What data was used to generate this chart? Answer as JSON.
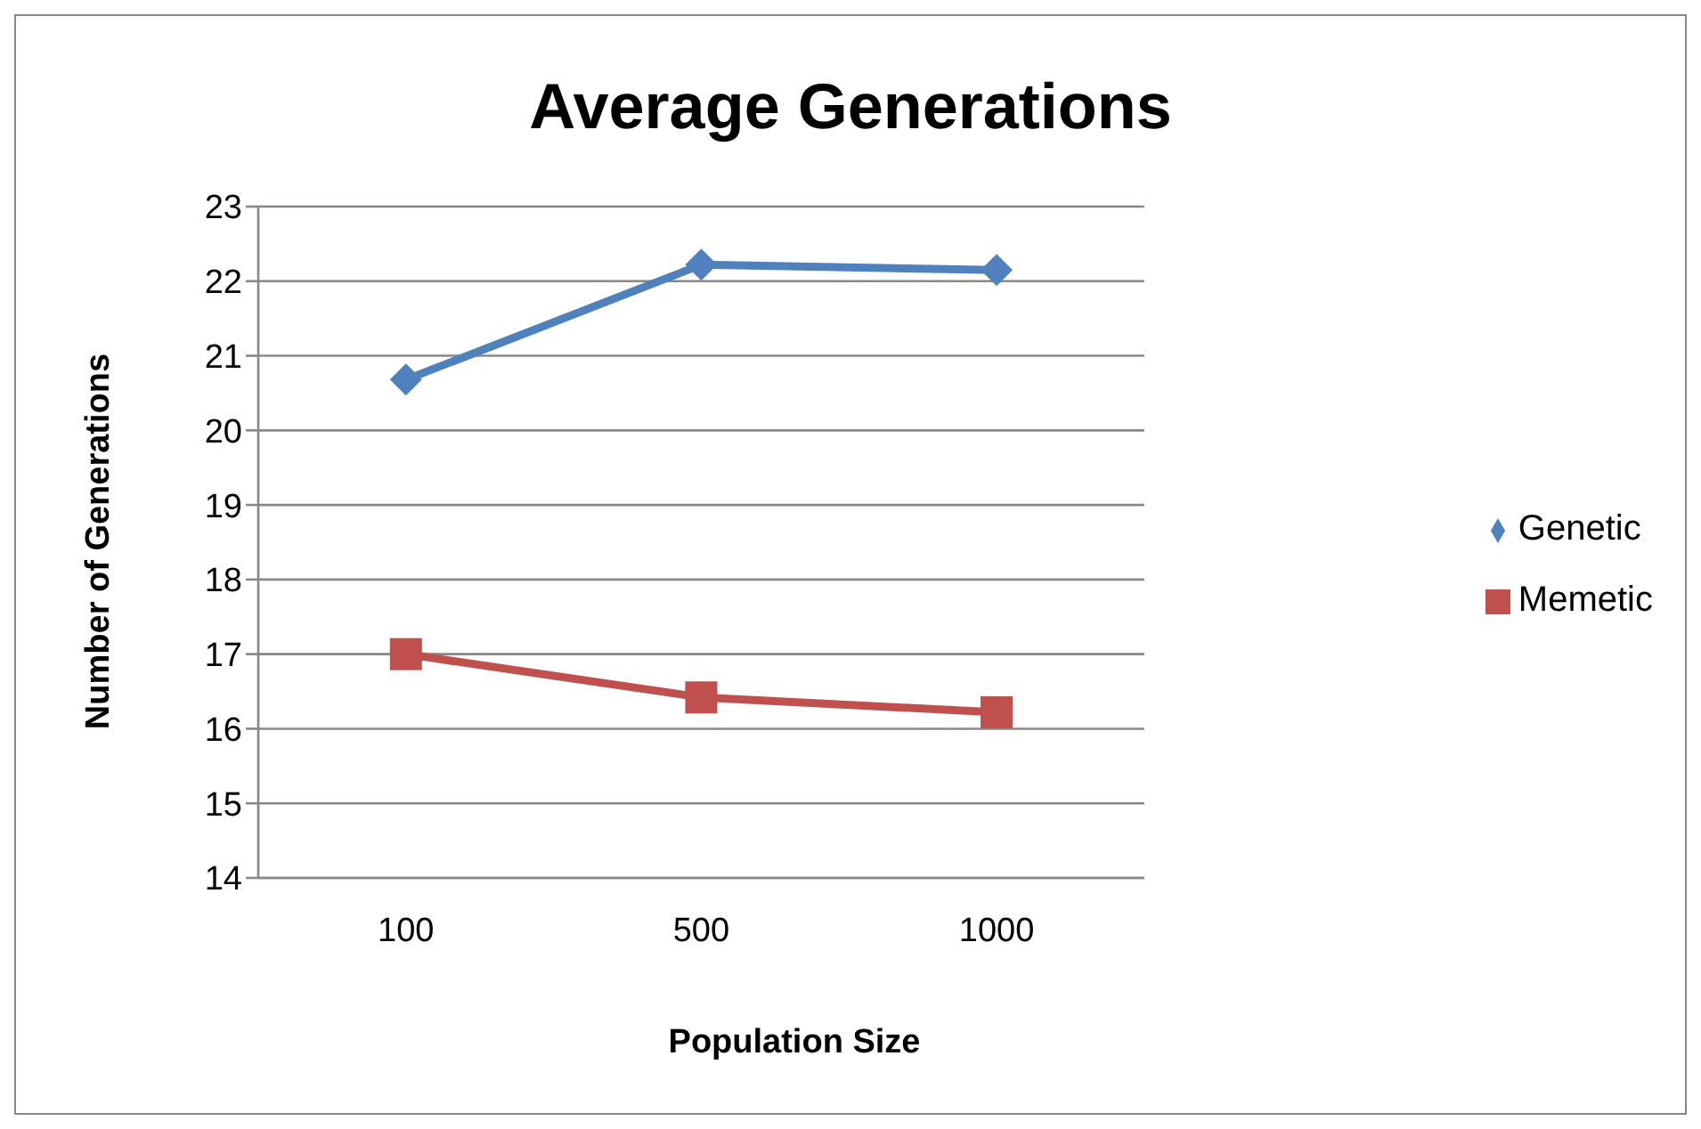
{
  "chart_data": {
    "type": "line",
    "title": "Average Generations",
    "xlabel": "Population Size",
    "ylabel": "Number of Generations",
    "categories": [
      "100",
      "500",
      "1000"
    ],
    "series": [
      {
        "name": "Genetic",
        "color": "#4f81bd",
        "values": [
          20.68,
          22.22,
          22.15
        ],
        "marker": "diamond"
      },
      {
        "name": "Memetic",
        "color": "#c0504d",
        "values": [
          17.0,
          16.42,
          16.22
        ],
        "marker": "square"
      }
    ],
    "ylim": [
      14,
      23
    ],
    "yticks": [
      14,
      15,
      16,
      17,
      18,
      19,
      20,
      21,
      22,
      23
    ],
    "grid": "y",
    "legend": "right",
    "line_style": "solid"
  }
}
